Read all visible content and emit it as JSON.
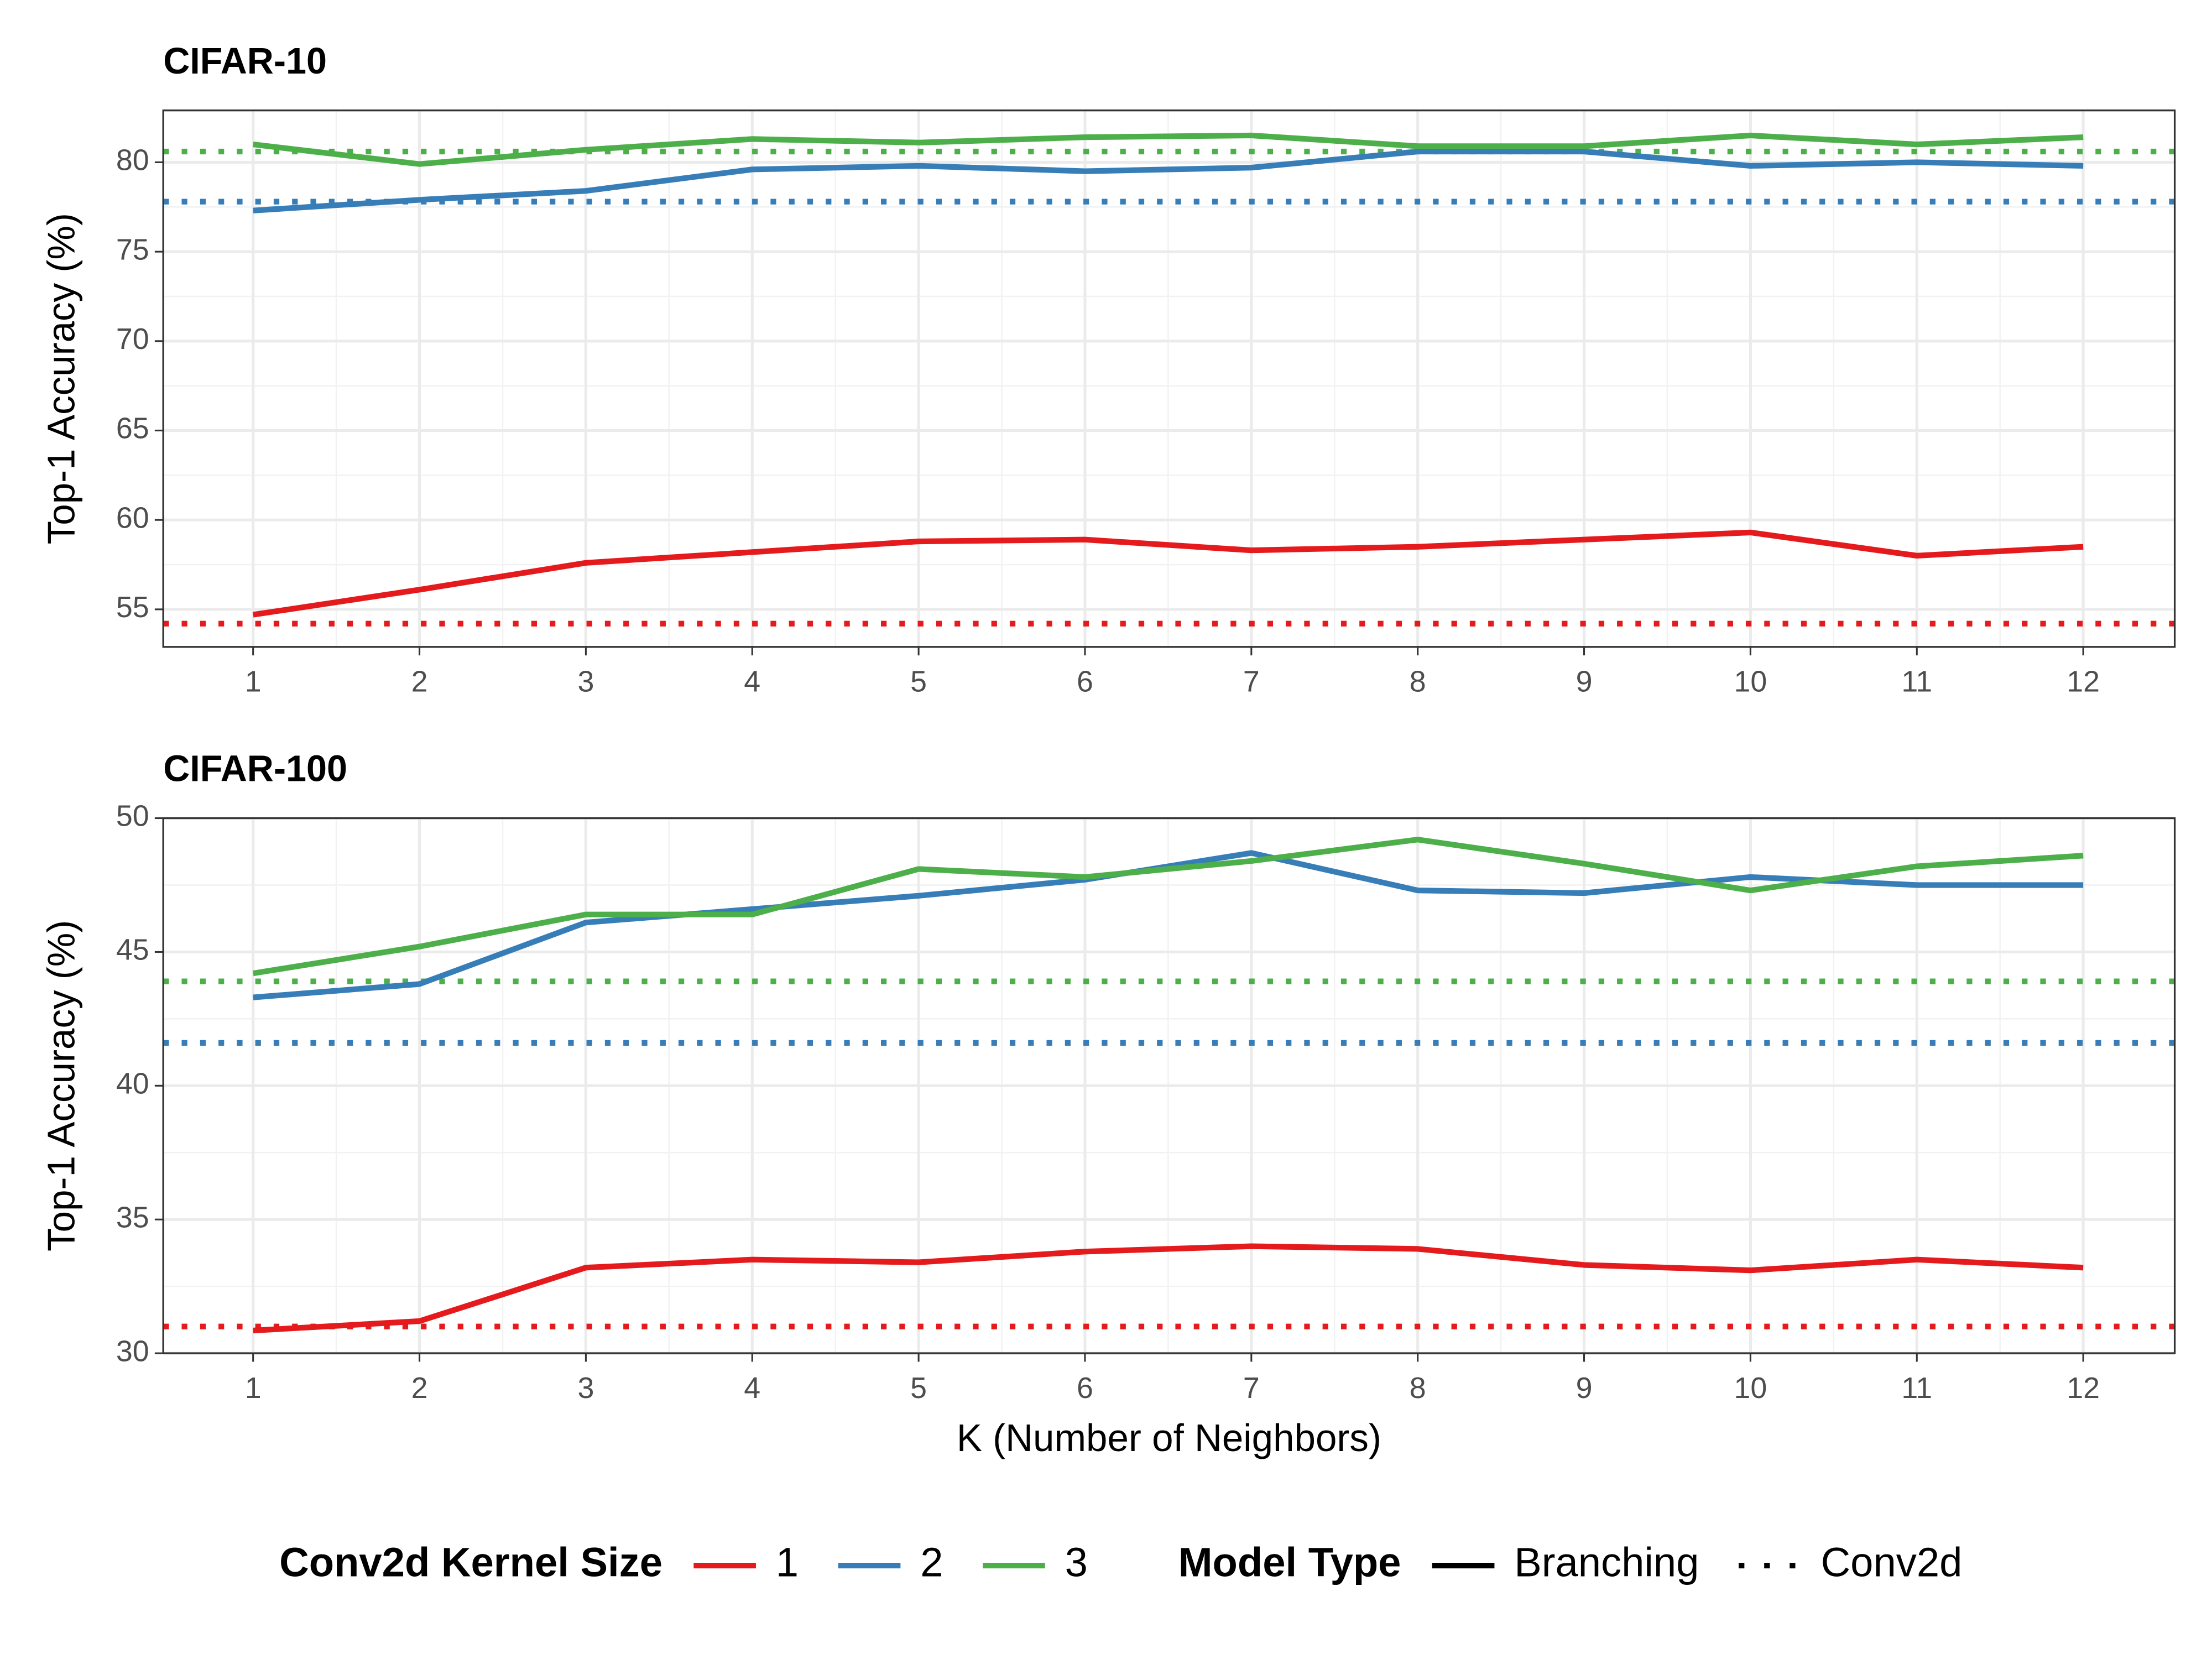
{
  "chart_data": [
    {
      "type": "line",
      "title": "CIFAR-10",
      "y_label": "Top-1 Accuracy (%)",
      "x": [
        1,
        2,
        3,
        4,
        5,
        6,
        7,
        8,
        9,
        10,
        11,
        12
      ],
      "xlim": [
        0.46,
        12.55
      ],
      "xticks": [
        1,
        2,
        3,
        4,
        5,
        6,
        7,
        8,
        9,
        10,
        11,
        12
      ],
      "ylim": [
        52.9,
        82.9
      ],
      "yticks": [
        55,
        60,
        65,
        70,
        75,
        80
      ],
      "grid": true,
      "series": [
        {
          "color": "#e41a1c",
          "values": [
            54.7,
            56.1,
            57.6,
            58.2,
            58.8,
            58.9,
            58.3,
            58.5,
            58.9,
            59.3,
            58.0,
            58.5
          ]
        },
        {
          "color": "#377eb8",
          "values": [
            77.3,
            77.9,
            78.4,
            79.6,
            79.8,
            79.5,
            79.7,
            80.6,
            80.6,
            79.8,
            80.0,
            79.8
          ]
        },
        {
          "color": "#4daf4a",
          "values": [
            81.0,
            79.9,
            80.7,
            81.3,
            81.1,
            81.4,
            81.5,
            80.9,
            80.9,
            81.5,
            81.0,
            81.4
          ]
        }
      ],
      "baselines": [
        {
          "color": "#e41a1c",
          "value": 54.2
        },
        {
          "color": "#377eb8",
          "value": 77.8
        },
        {
          "color": "#4daf4a",
          "value": 80.6
        }
      ]
    },
    {
      "type": "line",
      "title": "CIFAR-100",
      "y_label": "Top-1 Accuracy (%)",
      "x_label": "K (Number of Neighbors)",
      "x": [
        1,
        2,
        3,
        4,
        5,
        6,
        7,
        8,
        9,
        10,
        11,
        12
      ],
      "xlim": [
        0.46,
        12.55
      ],
      "xticks": [
        1,
        2,
        3,
        4,
        5,
        6,
        7,
        8,
        9,
        10,
        11,
        12
      ],
      "ylim": [
        30,
        50
      ],
      "yticks": [
        30,
        35,
        40,
        45,
        50
      ],
      "grid": true,
      "series": [
        {
          "color": "#e41a1c",
          "values": [
            30.85,
            31.2,
            33.2,
            33.5,
            33.4,
            33.8,
            34.0,
            33.9,
            33.3,
            33.1,
            33.5,
            33.2
          ]
        },
        {
          "color": "#377eb8",
          "values": [
            43.3,
            43.8,
            46.1,
            46.6,
            47.1,
            47.7,
            48.7,
            47.3,
            47.2,
            47.8,
            47.5,
            47.5
          ]
        },
        {
          "color": "#4daf4a",
          "values": [
            44.2,
            45.2,
            46.4,
            46.4,
            48.1,
            47.8,
            48.4,
            49.2,
            48.3,
            47.3,
            48.2,
            48.6
          ]
        }
      ],
      "baselines": [
        {
          "color": "#e41a1c",
          "value": 31.0
        },
        {
          "color": "#377eb8",
          "value": 41.6
        },
        {
          "color": "#4daf4a",
          "value": 43.9
        }
      ]
    }
  ],
  "legend": {
    "color_title": "Conv2d Kernel Size",
    "color_items": [
      {
        "name": "1",
        "color": "#e41a1c"
      },
      {
        "name": "2",
        "color": "#377eb8"
      },
      {
        "name": "3",
        "color": "#4daf4a"
      }
    ],
    "linetype_title": "Model Type",
    "linetype_items": [
      "Branching",
      "Conv2d"
    ]
  }
}
